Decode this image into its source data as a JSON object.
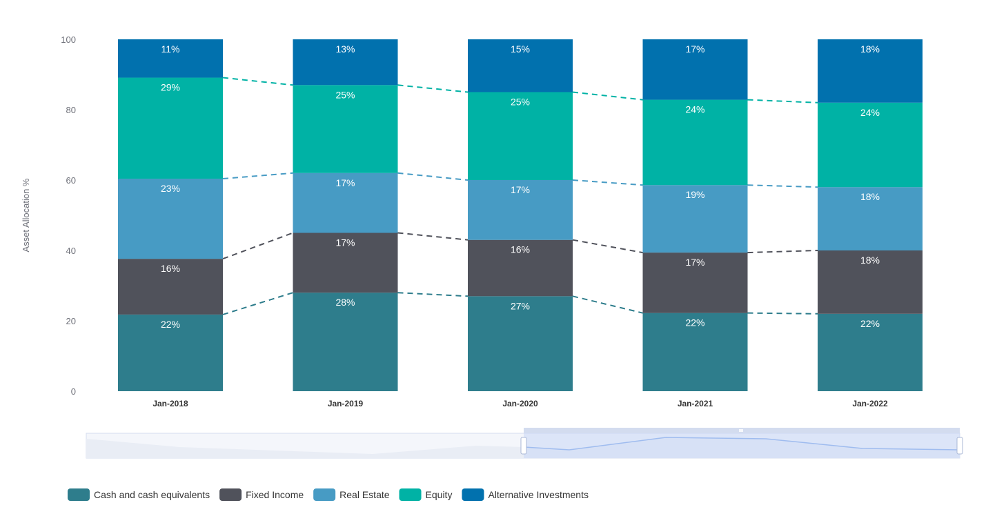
{
  "chart_data": {
    "type": "bar",
    "stacked": true,
    "categories": [
      "Jan-2018",
      "Jan-2019",
      "Jan-2020",
      "Jan-2021",
      "Jan-2022"
    ],
    "series": [
      {
        "name": "Cash and cash equivalents",
        "values": [
          22,
          28,
          27,
          22,
          22
        ],
        "labels": [
          "22%",
          "28%",
          "27%",
          "22%",
          "22%"
        ],
        "color": "#2e7d8c"
      },
      {
        "name": "Fixed Income",
        "values": [
          16,
          17,
          16,
          17,
          18
        ],
        "labels": [
          "16%",
          "17%",
          "16%",
          "17%",
          "18%"
        ],
        "color": "#50525b"
      },
      {
        "name": "Real Estate",
        "values": [
          23,
          17,
          17,
          19,
          18
        ],
        "labels": [
          "23%",
          "17%",
          "17%",
          "19%",
          "18%"
        ],
        "color": "#479bc4"
      },
      {
        "name": "Equity",
        "values": [
          29,
          25,
          25,
          24,
          24
        ],
        "labels": [
          "29%",
          "25%",
          "25%",
          "24%",
          "24%"
        ],
        "color": "#00b2a5"
      },
      {
        "name": "Alternative Investments",
        "values": [
          11,
          13,
          15,
          17,
          18
        ],
        "labels": [
          "11%",
          "13%",
          "15%",
          "17%",
          "18%"
        ],
        "color": "#0171ae"
      }
    ],
    "ylabel": "Asset Allocation %",
    "xlabel": "",
    "ylim": [
      0,
      100
    ],
    "yticks": [
      "0",
      "20",
      "40",
      "60",
      "80",
      "100"
    ],
    "connector_lines": "dashed",
    "grid": false,
    "legend_position": "bottom-left",
    "data_zoom": {
      "start_fraction": 0.5,
      "end_fraction": 1.0
    }
  }
}
